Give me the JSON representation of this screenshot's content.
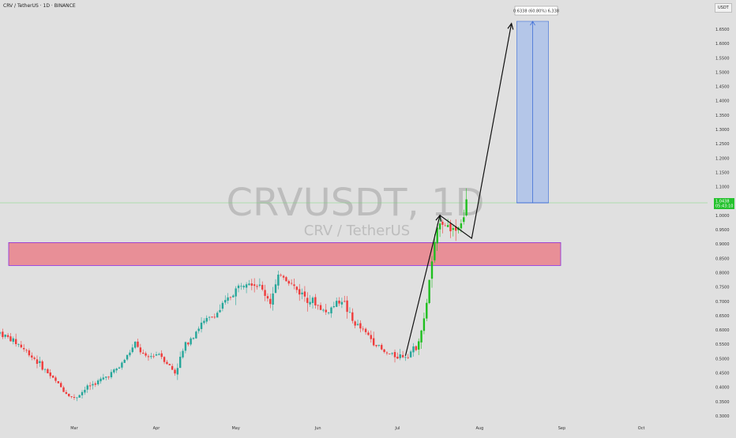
{
  "header": {
    "title": "CRV / TetherUS · 1D · BINANCE"
  },
  "watermark": {
    "symbol": "CRVUSDT, 1D",
    "name": "CRV / TetherUS"
  },
  "axis": {
    "currency": "USDT"
  },
  "colors": {
    "background": "#e0e0e0",
    "up": "#26a69a",
    "up_bright": "#1fbf1f",
    "down": "#ef3b3b",
    "zone_fill": "#e88f97",
    "zone_border": "#8a2be2",
    "target_fill": "#b4c6e8",
    "target_line": "#3f6fd6",
    "current_price_bg": "#25c22e"
  },
  "current_price": {
    "value": "1.0438",
    "countdown": "05:43:10"
  },
  "measure": {
    "label": "0.6338 (60.80%) 6,338",
    "from": 1.0438,
    "to": 1.6776
  },
  "support_zone": {
    "low": 0.825,
    "high": 0.905
  },
  "chart_data": {
    "type": "candlestick",
    "y_ticks": [
      "0.3000",
      "0.3500",
      "0.4000",
      "0.4500",
      "0.5000",
      "0.5500",
      "0.6000",
      "0.6500",
      "0.7000",
      "0.7500",
      "0.8000",
      "0.8500",
      "0.9000",
      "0.9500",
      "1.0000",
      "1.1000",
      "1.1500",
      "1.2000",
      "1.2500",
      "1.3000",
      "1.3500",
      "1.4000",
      "1.4500",
      "1.5000",
      "1.5500",
      "1.6000",
      "1.6500"
    ],
    "ylim": [
      0.29,
      1.72
    ],
    "x_ticks": [
      "Mar",
      "Apr",
      "May",
      "Jun",
      "Jul",
      "Aug",
      "Sep",
      "Oct"
    ],
    "xlim": [
      "2025-02-01",
      "2025-10-26"
    ],
    "ohlc_waypoints": [
      [
        "2025-02-01",
        0.59
      ],
      [
        "2025-02-08",
        0.55
      ],
      [
        "2025-02-14",
        0.5
      ],
      [
        "2025-02-20",
        0.44
      ],
      [
        "2025-02-26",
        0.38
      ],
      [
        "2025-03-01",
        0.36
      ],
      [
        "2025-03-06",
        0.4
      ],
      [
        "2025-03-12",
        0.43
      ],
      [
        "2025-03-18",
        0.47
      ],
      [
        "2025-03-24",
        0.55
      ],
      [
        "2025-03-28",
        0.5
      ],
      [
        "2025-04-02",
        0.52
      ],
      [
        "2025-04-08",
        0.45
      ],
      [
        "2025-04-12",
        0.55
      ],
      [
        "2025-04-18",
        0.62
      ],
      [
        "2025-04-24",
        0.66
      ],
      [
        "2025-04-30",
        0.73
      ],
      [
        "2025-05-05",
        0.78
      ],
      [
        "2025-05-10",
        0.75
      ],
      [
        "2025-05-14",
        0.7
      ],
      [
        "2025-05-18",
        0.8
      ],
      [
        "2025-05-24",
        0.74
      ],
      [
        "2025-05-30",
        0.7
      ],
      [
        "2025-06-04",
        0.66
      ],
      [
        "2025-06-10",
        0.71
      ],
      [
        "2025-06-14",
        0.63
      ],
      [
        "2025-06-20",
        0.58
      ],
      [
        "2025-06-26",
        0.52
      ],
      [
        "2025-06-30",
        0.51
      ],
      [
        "2025-07-04",
        0.51
      ],
      [
        "2025-07-08",
        0.54
      ],
      [
        "2025-07-11",
        0.63
      ],
      [
        "2025-07-14",
        0.84
      ],
      [
        "2025-07-17",
        0.99
      ],
      [
        "2025-07-20",
        0.96
      ],
      [
        "2025-07-23",
        0.95
      ],
      [
        "2025-07-26",
        1.0
      ],
      [
        "2025-07-27",
        1.0438
      ]
    ],
    "projection": [
      {
        "date": "2025-07-04",
        "price": 0.51
      },
      {
        "date": "2025-07-17",
        "price": 1.0
      },
      {
        "date": "2025-07-29",
        "price": 0.92
      },
      {
        "date": "2025-08-13",
        "price": 1.67
      }
    ],
    "target_box": {
      "start": "2025-08-15",
      "end": "2025-08-27",
      "low": 1.0438,
      "high": 1.6776
    }
  }
}
